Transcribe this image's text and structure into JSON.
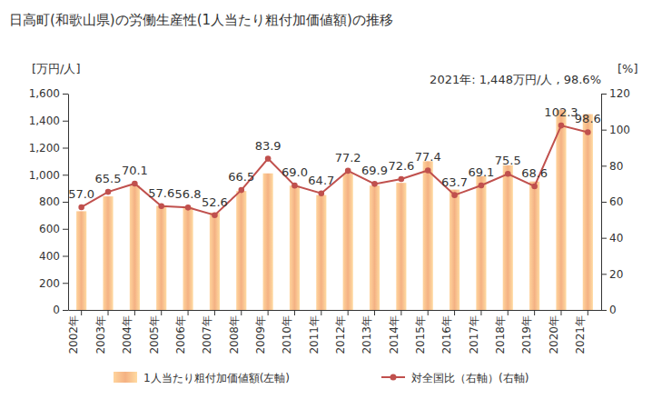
{
  "chart_data": {
    "type": "bar",
    "title": "日高町(和歌山県)の労働生産性(1人当たり粗付加価値額)の推移",
    "y_label": "[万円/人]",
    "y2_label": "[%]",
    "annotation": "2021年: 1,448万円/人 , 98.6%",
    "categories": [
      "2002年",
      "2003年",
      "2004年",
      "2005年",
      "2006年",
      "2007年",
      "2008年",
      "2009年",
      "2010年",
      "2011年",
      "2012年",
      "2013年",
      "2014年",
      "2015年",
      "2016年",
      "2017年",
      "2018年",
      "2019年",
      "2020年",
      "2021年"
    ],
    "series": [
      {
        "name": "1人当たり粗付加価値額(左軸)",
        "type": "bar",
        "color": "#f4b183",
        "values": [
          730,
          840,
          920,
          770,
          760,
          720,
          880,
          1010,
          920,
          850,
          1010,
          920,
          940,
          1100,
          890,
          990,
          1070,
          950,
          1480,
          1448
        ]
      },
      {
        "name": "対全国比（右軸）(右軸)",
        "type": "line",
        "axis": "y2",
        "color": "#c0504d",
        "marker": "circle",
        "data_labels": true,
        "values": [
          57.0,
          65.5,
          70.1,
          57.6,
          56.8,
          52.6,
          66.5,
          83.9,
          69.0,
          64.7,
          77.2,
          69.9,
          72.6,
          77.4,
          63.7,
          69.1,
          75.5,
          68.6,
          102.3,
          98.6
        ],
        "value_labels": [
          "57.0",
          "65.5",
          "70.1",
          "57.6",
          "56.8",
          "52.6",
          "66.5",
          "83.9",
          "69.0",
          "64.7",
          "77.2",
          "69.9",
          "72.6",
          "77.4",
          "63.7",
          "69.1",
          "75.5",
          "68.6",
          "102.3",
          "98.6"
        ]
      }
    ],
    "ylim": [
      0,
      1600
    ],
    "yticks": [
      0,
      200,
      400,
      600,
      800,
      {
        "value": 1000,
        "label": "1,000"
      },
      {
        "value": 1200,
        "label": "1,200"
      },
      {
        "value": 1400,
        "label": "1,400"
      },
      {
        "value": 1600,
        "label": "1,600"
      }
    ],
    "y2lim": [
      0,
      120
    ],
    "y2ticks": [
      0,
      20,
      40,
      60,
      80,
      100,
      120
    ],
    "grid": false,
    "legend": "bottom"
  }
}
